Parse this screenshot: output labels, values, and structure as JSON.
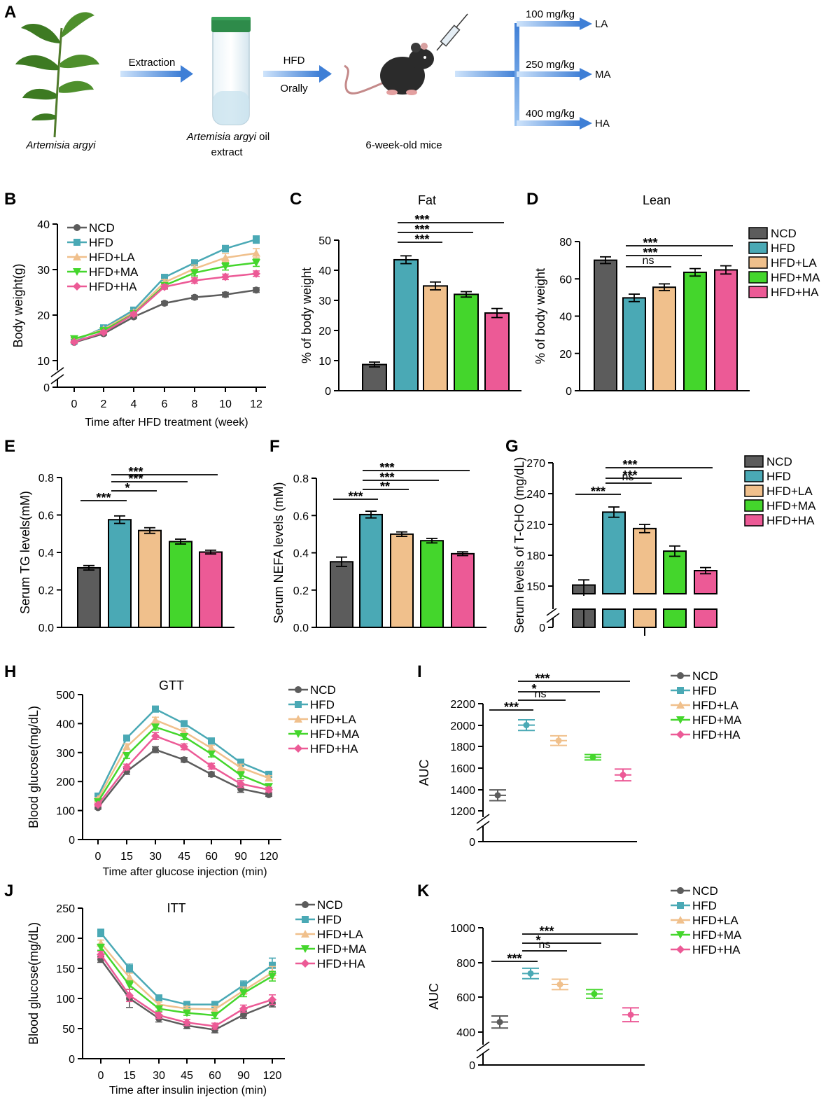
{
  "colors": {
    "NCD": "#5c5c5c",
    "HFD": "#4aa9b5",
    "HFD+LA": "#f0c08c",
    "HFD+MA": "#44d62c",
    "HFD+HA": "#ec5a96"
  },
  "panel_A": {
    "letter": "A",
    "plant_label": "Artemisia argyi",
    "extraction_label": "Extraction",
    "extract_label_italic": "Artemisia argyi",
    "extract_label_rest": " oil",
    "extract_label_line2": "extract",
    "hfd_label": "HFD",
    "orally_label": "Orally",
    "mice_label": "6-week-old mice",
    "doses": [
      {
        "dose": "100 mg/kg",
        "group": "LA"
      },
      {
        "dose": "250 mg/kg",
        "group": "MA"
      },
      {
        "dose": "400 mg/kg",
        "group": "HA"
      }
    ]
  },
  "chart_data": [
    {
      "panel": "B",
      "type": "line",
      "xlabel": "Time after HFD treatment (week)",
      "ylabel": "Body weight(g)",
      "x": [
        0,
        2,
        4,
        6,
        8,
        10,
        12
      ],
      "ylim": [
        0,
        40
      ],
      "yticks": [
        0,
        10,
        20,
        30,
        40
      ],
      "axis_break": true,
      "legend": "top-left",
      "series": [
        {
          "name": "NCD",
          "marker": "circle",
          "values": [
            14,
            15.9,
            19.6,
            22.6,
            23.9,
            24.5,
            25.5
          ],
          "err": [
            0.3,
            0.3,
            0.3,
            0.4,
            0.4,
            0.5,
            0.5
          ]
        },
        {
          "name": "HFD",
          "marker": "square",
          "values": [
            14.3,
            17.2,
            21.1,
            28.3,
            31.5,
            34.6,
            36.6
          ],
          "err": [
            0.3,
            0.3,
            0.4,
            0.6,
            0.6,
            0.7,
            0.8
          ]
        },
        {
          "name": "HFD+LA",
          "marker": "triangle-up",
          "values": [
            14.6,
            16.9,
            20.6,
            27.2,
            30.2,
            32.6,
            33.6
          ],
          "err": [
            0.3,
            0.3,
            0.4,
            0.6,
            0.8,
            0.9,
            1.0
          ]
        },
        {
          "name": "HFD+MA",
          "marker": "triangle-down",
          "values": [
            14.8,
            16.6,
            20.3,
            26.5,
            29.3,
            30.7,
            31.5
          ],
          "err": [
            0.3,
            0.3,
            0.4,
            0.6,
            0.7,
            0.8,
            0.8
          ]
        },
        {
          "name": "HFD+HA",
          "marker": "diamond",
          "values": [
            14.1,
            16.2,
            20.2,
            26.2,
            27.6,
            28.4,
            29.1
          ],
          "err": [
            0.3,
            0.3,
            0.4,
            0.5,
            0.6,
            0.6,
            0.6
          ]
        }
      ]
    },
    {
      "panel": "C",
      "type": "bar",
      "title": "Fat",
      "ylabel": "% of body weight",
      "ylim": [
        0,
        50
      ],
      "yticks": [
        0,
        10,
        20,
        30,
        40,
        50
      ],
      "categories": [
        "NCD",
        "HFD",
        "HFD+LA",
        "HFD+MA",
        "HFD+HA"
      ],
      "values": [
        8.7,
        43.5,
        34.8,
        32,
        25.8
      ],
      "err": [
        0.8,
        1.3,
        1.3,
        0.9,
        1.5
      ],
      "sig": [
        {
          "from": 1,
          "to": 2,
          "label": "***"
        },
        {
          "from": 1,
          "to": 3,
          "label": "***"
        },
        {
          "from": 1,
          "to": 4,
          "label": "***"
        }
      ]
    },
    {
      "panel": "D",
      "type": "bar",
      "title": "Lean",
      "ylabel": "% of body weight",
      "ylim": [
        0,
        80
      ],
      "yticks": [
        0,
        20,
        40,
        60,
        80
      ],
      "categories": [
        "NCD",
        "HFD",
        "HFD+LA",
        "HFD+MA",
        "HFD+HA"
      ],
      "values": [
        70,
        49.8,
        55.5,
        63.5,
        64.8
      ],
      "err": [
        1.8,
        2,
        1.8,
        2,
        2.2
      ],
      "legend": "right",
      "sig": [
        {
          "from": 1,
          "to": 2,
          "label": "ns"
        },
        {
          "from": 1,
          "to": 3,
          "label": "***"
        },
        {
          "from": 1,
          "to": 4,
          "label": "***"
        }
      ]
    },
    {
      "panel": "E",
      "type": "bar",
      "ylabel": "Serum TG levels(mM)",
      "ylim": [
        0,
        0.8
      ],
      "yticks": [
        "0.0",
        "0.2",
        "0.4",
        "0.6",
        "0.8"
      ],
      "categories": [
        "NCD",
        "HFD",
        "HFD+LA",
        "HFD+MA",
        "HFD+HA"
      ],
      "values": [
        0.318,
        0.575,
        0.517,
        0.458,
        0.402
      ],
      "err": [
        0.012,
        0.02,
        0.015,
        0.013,
        0.01
      ],
      "sig": [
        {
          "from": 0,
          "to": 1,
          "label": "***"
        },
        {
          "from": 1,
          "to": 2,
          "label": "*"
        },
        {
          "from": 1,
          "to": 3,
          "label": "***"
        },
        {
          "from": 1,
          "to": 4,
          "label": "***"
        }
      ]
    },
    {
      "panel": "F",
      "type": "bar",
      "ylabel": "Serum NEFA levels (mM)",
      "ylim": [
        0,
        0.8
      ],
      "yticks": [
        "0.0",
        "0.2",
        "0.4",
        "0.6",
        "0.8"
      ],
      "categories": [
        "NCD",
        "HFD",
        "HFD+LA",
        "HFD+MA",
        "HFD+HA"
      ],
      "values": [
        0.352,
        0.605,
        0.5,
        0.465,
        0.395
      ],
      "err": [
        0.025,
        0.018,
        0.012,
        0.012,
        0.01
      ],
      "sig": [
        {
          "from": 0,
          "to": 1,
          "label": "***"
        },
        {
          "from": 1,
          "to": 2,
          "label": "**"
        },
        {
          "from": 1,
          "to": 3,
          "label": "***"
        },
        {
          "from": 1,
          "to": 4,
          "label": "***"
        }
      ]
    },
    {
      "panel": "G",
      "type": "bar",
      "ylabel": "Serum levels of T-CHO (mg/dL)",
      "ylim": [
        0,
        270
      ],
      "yticks": [
        0,
        150,
        180,
        210,
        240,
        270
      ],
      "axis_break": true,
      "categories": [
        "NCD",
        "HFD",
        "HFD+LA",
        "HFD+MA",
        "HFD+HA"
      ],
      "values": [
        151,
        222,
        206,
        184,
        165
      ],
      "err": [
        5,
        5,
        4,
        5,
        3
      ],
      "legend": "right",
      "sig": [
        {
          "from": 0,
          "to": 1,
          "label": "***"
        },
        {
          "from": 1,
          "to": 2,
          "label": "ns"
        },
        {
          "from": 1,
          "to": 3,
          "label": "***"
        },
        {
          "from": 1,
          "to": 4,
          "label": "***"
        }
      ]
    },
    {
      "panel": "H",
      "type": "line",
      "title": "GTT",
      "xlabel": "Time after glucose injection (min)",
      "ylabel": "Blood glucose(mg/dL)",
      "x": [
        0,
        15,
        30,
        45,
        60,
        90,
        120
      ],
      "ylim": [
        0,
        500
      ],
      "yticks": [
        0,
        100,
        200,
        300,
        400,
        500
      ],
      "legend": "right",
      "series": [
        {
          "name": "NCD",
          "marker": "circle",
          "values": [
            110,
            235,
            310,
            275,
            225,
            175,
            155
          ],
          "err": [
            5,
            10,
            10,
            8,
            8,
            12,
            6
          ]
        },
        {
          "name": "HFD",
          "marker": "square",
          "values": [
            150,
            350,
            450,
            400,
            340,
            265,
            225
          ],
          "err": [
            5,
            8,
            10,
            10,
            10,
            12,
            8
          ]
        },
        {
          "name": "HFD+LA",
          "marker": "triangle-up",
          "values": [
            140,
            320,
            412,
            372,
            315,
            248,
            212
          ],
          "err": [
            5,
            10,
            10,
            10,
            10,
            12,
            8
          ]
        },
        {
          "name": "HFD+MA",
          "marker": "triangle-down",
          "values": [
            130,
            290,
            388,
            355,
            295,
            222,
            183
          ],
          "err": [
            5,
            10,
            10,
            10,
            10,
            12,
            8
          ]
        },
        {
          "name": "HFD+HA",
          "marker": "diamond",
          "values": [
            120,
            250,
            357,
            320,
            253,
            192,
            172
          ],
          "err": [
            5,
            10,
            12,
            10,
            10,
            12,
            8
          ]
        }
      ]
    },
    {
      "panel": "I",
      "type": "scatter",
      "ylabel": "AUC",
      "ylim": [
        0,
        2200
      ],
      "yticks": [
        0,
        1200,
        1400,
        1600,
        1800,
        2000,
        2200
      ],
      "axis_break": true,
      "categories": [
        "NCD",
        "HFD",
        "HFD+LA",
        "HFD+MA",
        "HFD+HA"
      ],
      "values": [
        1345,
        2000,
        1855,
        1700,
        1535
      ],
      "err": [
        50,
        50,
        45,
        25,
        55
      ],
      "legend": "right",
      "sig": [
        {
          "from": 0,
          "to": 1,
          "label": "***"
        },
        {
          "from": 1,
          "to": 2,
          "label": "ns"
        },
        {
          "from": 1,
          "to": 3,
          "label": "*"
        },
        {
          "from": 1,
          "to": 4,
          "label": "***"
        }
      ]
    },
    {
      "panel": "J",
      "type": "line",
      "title": "ITT",
      "xlabel": "Time after insulin injection (min)",
      "ylabel": "Blood glucose(mg/dL)",
      "x": [
        0,
        15,
        30,
        45,
        60,
        90,
        120
      ],
      "ylim": [
        0,
        250
      ],
      "yticks": [
        0,
        50,
        100,
        150,
        200,
        250
      ],
      "legend": "right",
      "series": [
        {
          "name": "NCD",
          "marker": "circle",
          "values": [
            165,
            100,
            67,
            55,
            48,
            73,
            92
          ],
          "err": [
            5,
            15,
            6,
            5,
            5,
            6,
            6
          ]
        },
        {
          "name": "HFD",
          "marker": "square",
          "values": [
            209,
            150,
            101,
            90,
            90,
            122,
            155
          ],
          "err": [
            6,
            7,
            4,
            5,
            5,
            7,
            12
          ]
        },
        {
          "name": "HFD+LA",
          "marker": "triangle-up",
          "values": [
            192,
            135,
            90,
            83,
            82,
            113,
            143
          ],
          "err": [
            5,
            7,
            4,
            4,
            5,
            6,
            10
          ]
        },
        {
          "name": "HFD+MA",
          "marker": "triangle-down",
          "values": [
            185,
            122,
            83,
            76,
            72,
            109,
            137
          ],
          "err": [
            5,
            7,
            4,
            4,
            5,
            6,
            8
          ]
        },
        {
          "name": "HFD+HA",
          "marker": "diamond",
          "values": [
            173,
            105,
            72,
            60,
            54,
            83,
            98
          ],
          "err": [
            5,
            10,
            5,
            5,
            5,
            6,
            8
          ]
        }
      ]
    },
    {
      "panel": "K",
      "type": "scatter",
      "ylabel": "AUC",
      "ylim": [
        0,
        1000
      ],
      "yticks": [
        0,
        400,
        600,
        800,
        1000
      ],
      "axis_break": true,
      "categories": [
        "NCD",
        "HFD",
        "HFD+LA",
        "HFD+MA",
        "HFD+HA"
      ],
      "values": [
        458,
        738,
        675,
        620,
        500
      ],
      "err": [
        35,
        30,
        30,
        25,
        40
      ],
      "legend": "right",
      "sig": [
        {
          "from": 0,
          "to": 1,
          "label": "***"
        },
        {
          "from": 1,
          "to": 2,
          "label": "ns"
        },
        {
          "from": 1,
          "to": 3,
          "label": "*"
        },
        {
          "from": 1,
          "to": 4,
          "label": "***"
        }
      ]
    }
  ]
}
